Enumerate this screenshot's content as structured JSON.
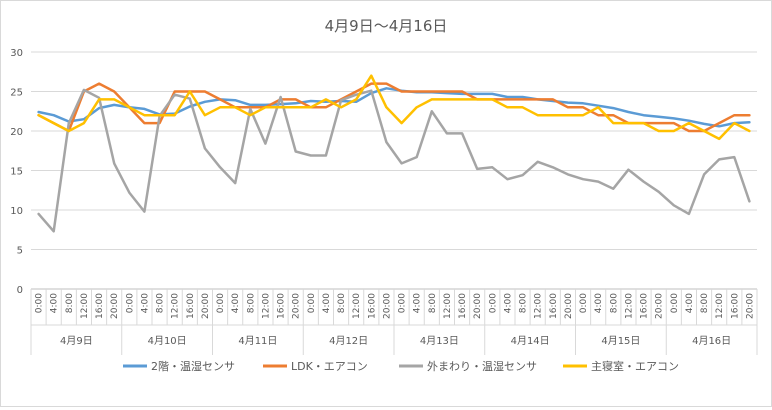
{
  "chart_data": {
    "type": "line",
    "title": "4月9日～4月16日",
    "xlabel": "",
    "ylabel": "",
    "ylim": [
      0,
      30
    ],
    "yticks": [
      0,
      5,
      10,
      15,
      20,
      25,
      30
    ],
    "grid": true,
    "legend_position": "bottom",
    "x": [
      "0:00",
      "4:00",
      "8:00",
      "12:00",
      "16:00",
      "20:00",
      "0:00",
      "4:00",
      "8:00",
      "12:00",
      "16:00",
      "20:00",
      "0:00",
      "4:00",
      "8:00",
      "12:00",
      "16:00",
      "20:00",
      "0:00",
      "4:00",
      "8:00",
      "12:00",
      "16:00",
      "20:00",
      "0:00",
      "4:00",
      "8:00",
      "12:00",
      "16:00",
      "20:00",
      "0:00",
      "4:00",
      "8:00",
      "12:00",
      "16:00",
      "20:00",
      "0:00",
      "4:00",
      "8:00",
      "12:00",
      "16:00",
      "20:00",
      "0:00",
      "4:00",
      "8:00",
      "12:00",
      "16:00",
      "20:00"
    ],
    "day_groups": [
      "4月9日",
      "4月10日",
      "4月11日",
      "4月12日",
      "4月13日",
      "4月14日",
      "4月15日",
      "4月16日"
    ],
    "series": [
      {
        "name": "2階・温湿センサ",
        "color": "#5B9BD5",
        "values": [
          22.4,
          22.0,
          21.2,
          21.5,
          22.9,
          23.3,
          23.0,
          22.8,
          22.1,
          22.2,
          23.1,
          23.7,
          24.0,
          23.9,
          23.3,
          23.3,
          23.4,
          23.5,
          23.8,
          23.7,
          23.8,
          23.7,
          24.8,
          25.4,
          25.1,
          24.9,
          24.9,
          24.8,
          24.7,
          24.7,
          24.7,
          24.3,
          24.3,
          24.0,
          23.8,
          23.6,
          23.5,
          23.2,
          22.9,
          22.4,
          22.0,
          21.8,
          21.6,
          21.3,
          20.9,
          20.6,
          21.0,
          21.1
        ]
      },
      {
        "name": "LDK・エアコン",
        "color": "#ED7D31",
        "values": [
          22,
          21,
          20,
          25,
          26,
          25,
          23,
          21,
          21,
          25,
          25,
          25,
          24,
          23,
          23,
          23,
          24,
          24,
          23,
          23,
          24,
          25,
          26,
          26,
          25,
          25,
          25,
          25,
          25,
          24,
          24,
          24,
          24,
          24,
          24,
          23,
          23,
          22,
          22,
          21,
          21,
          21,
          21,
          20,
          20,
          21,
          22,
          22
        ]
      },
      {
        "name": "外まわり・温湿センサ",
        "color": "#A5A5A5",
        "values": [
          9.5,
          7.3,
          21.0,
          25.2,
          24.2,
          15.9,
          12.2,
          9.8,
          21.9,
          24.6,
          24.1,
          17.8,
          15.4,
          13.4,
          22.8,
          18.4,
          24.3,
          17.4,
          16.9,
          16.9,
          23.9,
          24.6,
          25.1,
          18.6,
          15.9,
          16.7,
          22.5,
          19.7,
          19.7,
          15.2,
          15.4,
          13.9,
          14.4,
          16.1,
          15.4,
          14.5,
          13.9,
          13.6,
          12.7,
          15.1,
          13.6,
          12.3,
          10.6,
          9.5,
          14.5,
          16.4,
          16.7,
          11.1
        ]
      },
      {
        "name": "主寝室・エアコン",
        "color": "#FFC000",
        "values": [
          22,
          21,
          20,
          21,
          24,
          24,
          23,
          22,
          22,
          22,
          25,
          22,
          23,
          23,
          22,
          23,
          23,
          23,
          23,
          24,
          23,
          24,
          27,
          23,
          21,
          23,
          24,
          24,
          24,
          24,
          24,
          23,
          23,
          22,
          22,
          22,
          22,
          23,
          21,
          21,
          21,
          20,
          20,
          21,
          20,
          19,
          21,
          20
        ]
      }
    ]
  }
}
